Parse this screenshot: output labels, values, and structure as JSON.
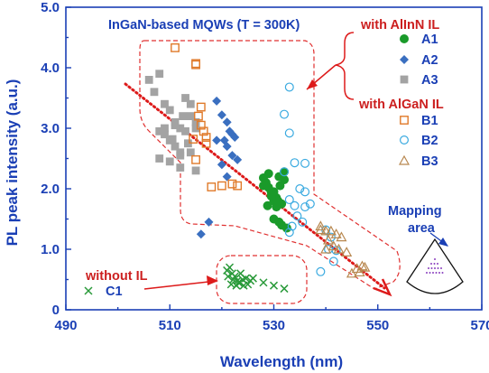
{
  "chart_data": {
    "type": "scatter",
    "title": "InGaN-based MQWs (T = 300K)",
    "xlabel": "Wavelength (nm)",
    "ylabel": "PL peak intensity (a.u.)",
    "xlim": [
      490,
      570
    ],
    "ylim": [
      0,
      5
    ],
    "xticks": [
      "490",
      "510",
      "530",
      "550",
      "570"
    ],
    "yticks": [
      "0",
      "1.0",
      "2.0",
      "3.0",
      "4.0",
      "5.0"
    ],
    "grid": false,
    "legend_placement": "top-right",
    "legend_groups": {
      "allinn": "with AlInN  IL",
      "algan": "with AlGaN IL",
      "without": "without IL"
    },
    "annotation": {
      "line1": "Mapping",
      "line2": "area"
    },
    "colors": {
      "axis": "#1a3fb5",
      "group_label": "#cc1f1f",
      "region": "#e03030",
      "A1": "#1a9a2a",
      "A2": "#3a6fc0",
      "A3": "#a3a3a3",
      "B1": "#e07a2a",
      "B2": "#3aaae0",
      "B3": "#b88850",
      "C1": "#2a9a3a"
    },
    "series": [
      {
        "name": "A1",
        "marker": "circle-filled",
        "x": [
          528,
          528.5,
          529,
          529.5,
          530,
          530.5,
          529,
          528,
          531,
          532,
          531.5,
          530,
          531,
          532.5,
          530.5,
          530,
          529.5,
          528.8,
          531.2,
          532,
          530.8,
          531.5
        ],
        "y": [
          2.18,
          2.1,
          2.02,
          1.95,
          1.8,
          1.85,
          2.25,
          2.05,
          2.2,
          2.15,
          1.75,
          1.5,
          1.45,
          1.35,
          1.7,
          1.95,
          1.88,
          1.72,
          2.05,
          2.28,
          1.8,
          1.4
        ]
      },
      {
        "name": "A2",
        "marker": "diamond-filled",
        "x": [
          519,
          520,
          521,
          521.5,
          522,
          522.5,
          521,
          520.5,
          519,
          520,
          521,
          522,
          523,
          517.5,
          516
        ],
        "y": [
          3.45,
          3.22,
          3.1,
          2.95,
          2.9,
          2.85,
          2.7,
          2.8,
          2.8,
          2.4,
          2.2,
          2.55,
          2.48,
          1.45,
          1.25
        ]
      },
      {
        "name": "A3",
        "marker": "square-filled",
        "x": [
          506,
          507,
          508,
          509,
          510,
          511,
          512,
          513,
          514,
          515,
          510,
          511,
          512,
          509,
          508,
          513,
          512,
          514,
          511,
          512.5,
          510,
          514,
          515,
          509,
          512,
          513.5,
          508,
          510.5,
          515
        ],
        "y": [
          3.8,
          3.6,
          3.9,
          3.4,
          3.3,
          3.1,
          3.0,
          3.5,
          3.2,
          3.1,
          2.8,
          2.7,
          2.6,
          2.9,
          2.5,
          2.95,
          2.35,
          2.6,
          3.05,
          3.2,
          2.45,
          3.4,
          3.0,
          3.0,
          2.55,
          2.75,
          2.95,
          2.82,
          2.3
        ]
      },
      {
        "name": "B1",
        "marker": "square-open",
        "x": [
          511,
          515,
          515,
          516,
          515.5,
          516,
          517,
          516.5,
          514.5,
          515,
          517,
          518,
          520,
          522,
          523
        ],
        "y": [
          4.33,
          4.05,
          4.07,
          3.35,
          3.2,
          3.05,
          2.85,
          2.95,
          2.82,
          2.48,
          2.75,
          2.03,
          2.05,
          2.08,
          2.05
        ]
      },
      {
        "name": "B2",
        "marker": "circle-open",
        "x": [
          533,
          532,
          533,
          534,
          536,
          535,
          536,
          537,
          533,
          534,
          534.5,
          536,
          535.5,
          540,
          541,
          540.5,
          542,
          541.5,
          539,
          533.5,
          533,
          532
        ],
        "y": [
          3.68,
          3.23,
          2.92,
          2.43,
          2.42,
          2.0,
          1.95,
          1.75,
          1.82,
          1.72,
          1.55,
          1.7,
          1.45,
          1.32,
          1.2,
          1.0,
          0.98,
          0.8,
          0.63,
          1.38,
          1.28,
          2.28
        ]
      },
      {
        "name": "B3",
        "marker": "triangle-open",
        "x": [
          539,
          540,
          541,
          542,
          543,
          540.5,
          541.5,
          542.5,
          544,
          545,
          546,
          547,
          547.5,
          546.5,
          540,
          539
        ],
        "y": [
          1.32,
          1.3,
          1.3,
          1.25,
          1.2,
          1.15,
          1.05,
          1.0,
          0.95,
          0.6,
          0.68,
          0.72,
          0.7,
          0.62,
          1.0,
          1.38
        ]
      },
      {
        "name": "C1",
        "marker": "x",
        "x": [
          521,
          521.5,
          522,
          522.5,
          523,
          523.5,
          524,
          521.8,
          522.8,
          523.2,
          524.2,
          525,
          526,
          528,
          530,
          532,
          521.2,
          522.2,
          523.6,
          524.6,
          525.5
        ],
        "y": [
          0.65,
          0.7,
          0.6,
          0.55,
          0.48,
          0.45,
          0.5,
          0.42,
          0.4,
          0.45,
          0.4,
          0.42,
          0.52,
          0.45,
          0.4,
          0.35,
          0.55,
          0.5,
          0.6,
          0.52,
          0.48
        ]
      }
    ]
  }
}
